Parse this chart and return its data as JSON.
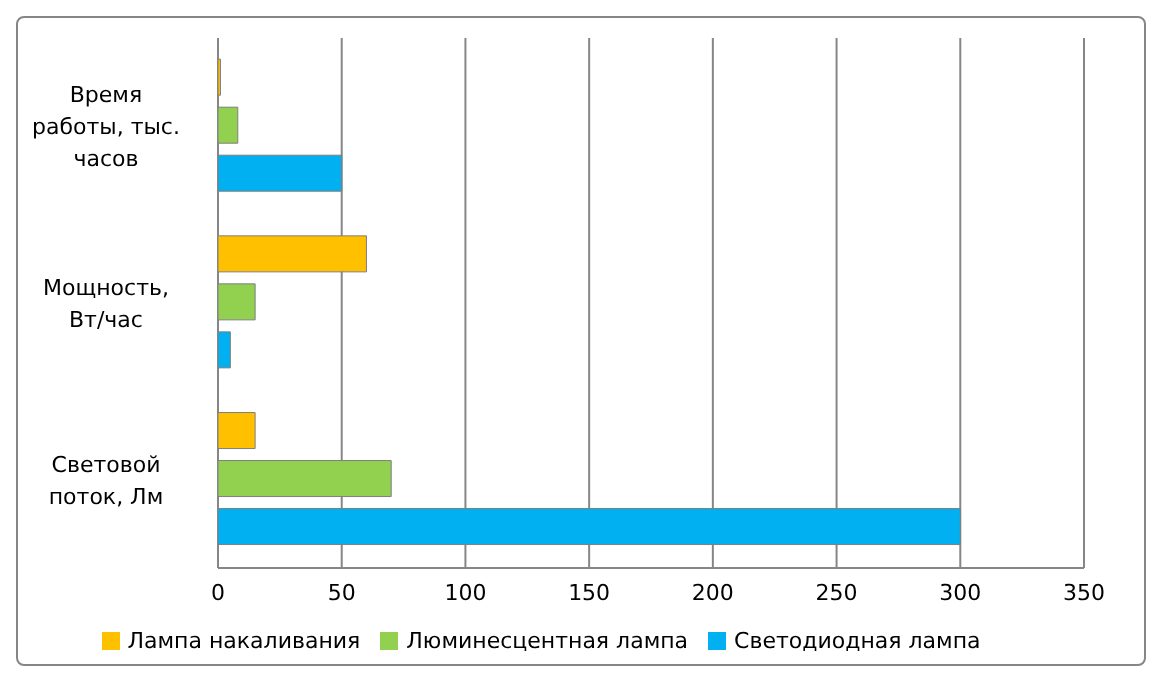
{
  "chart_data": {
    "type": "bar",
    "orientation": "horizontal",
    "categories": [
      "Время работы, тыс. часов",
      "Мощность, Вт/час",
      "Световой поток, Лм"
    ],
    "series": [
      {
        "name": "Лампа накаливания",
        "color": "#ffc000",
        "values": [
          1,
          60,
          15
        ]
      },
      {
        "name": "Люминесцентная лампа",
        "color": "#92d050",
        "values": [
          8,
          15,
          70
        ]
      },
      {
        "name": "Светодиодная лампа",
        "color": "#00b0f0",
        "values": [
          50,
          5,
          300
        ]
      }
    ],
    "xlim": [
      0,
      350
    ],
    "xticks": [
      0,
      50,
      100,
      150,
      200,
      250,
      300,
      350
    ],
    "grid": "x",
    "legend": "bottom"
  }
}
